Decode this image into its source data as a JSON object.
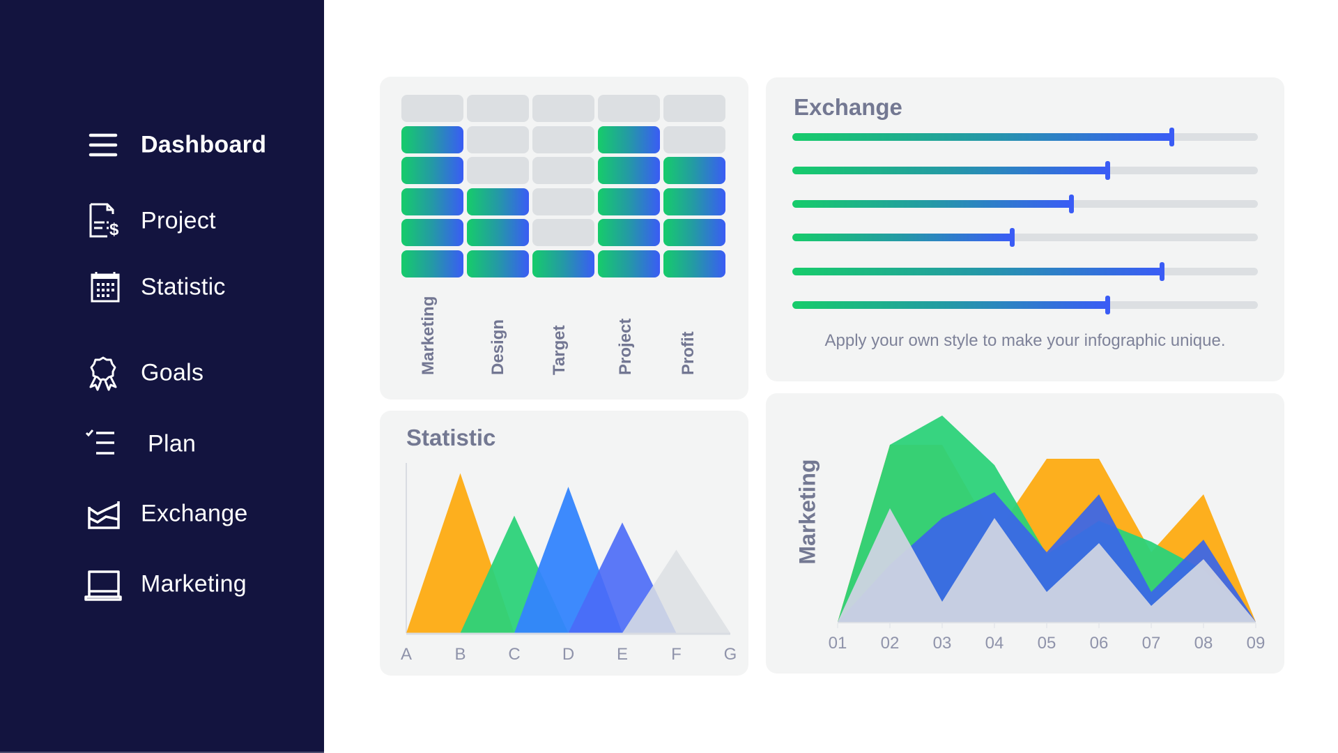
{
  "sidebar": {
    "background": "#13143f",
    "items": [
      {
        "label": "Dashboard",
        "icon": "menu-icon",
        "active": true
      },
      {
        "label": "Project",
        "icon": "invoice-icon",
        "active": false
      },
      {
        "label": "Statistic",
        "icon": "calendar-icon",
        "active": false
      },
      {
        "label": "Goals",
        "icon": "award-badge-icon",
        "active": false
      },
      {
        "label": "Plan",
        "icon": "checklist-icon",
        "active": false
      },
      {
        "label": "Exchange",
        "icon": "area-chart-icon",
        "active": false
      },
      {
        "label": "Marketing",
        "icon": "laptop-icon",
        "active": false
      }
    ]
  },
  "heatmap": {
    "columns": [
      "Marketing",
      "Design",
      "Target",
      "Project",
      "Profit"
    ],
    "rows": 6,
    "filled_from_bottom": [
      5,
      3,
      1,
      5,
      4
    ],
    "gradient": [
      "#16cc6a",
      "#3a5cf5"
    ],
    "empty_color": "#dcdfe2"
  },
  "exchange": {
    "title": "Exchange",
    "sliders": [
      81.4,
      67.7,
      59.9,
      47.2,
      79.3,
      67.7
    ],
    "caption": "Apply your own style to make your infographic unique."
  },
  "statistic": {
    "title": "Statistic"
  },
  "marketing": {
    "ylabel": "Marketing"
  },
  "chart_data": [
    {
      "type": "area",
      "title": "Statistic",
      "subtype": "triangle-peaks",
      "categories": [
        "A",
        "B",
        "C",
        "D",
        "E",
        "F",
        "G"
      ],
      "series": [
        {
          "name": "orange",
          "peak_at": "B",
          "span": [
            "A",
            "C"
          ],
          "value": 94,
          "color": "#fdaf1e"
        },
        {
          "name": "green",
          "peak_at": "C",
          "span": [
            "B",
            "D"
          ],
          "value": 69,
          "color": "#2cd279"
        },
        {
          "name": "blue",
          "peak_at": "D",
          "span": [
            "C",
            "E"
          ],
          "value": 86,
          "color": "#3384fd"
        },
        {
          "name": "indigo",
          "peak_at": "E",
          "span": [
            "D",
            "F"
          ],
          "value": 65,
          "color": "#4a6af7"
        },
        {
          "name": "gray",
          "peak_at": "F",
          "span": [
            "E",
            "G"
          ],
          "value": 49,
          "color": "#dcdfe3"
        }
      ],
      "xlabel": "",
      "ylabel": "",
      "ylim": [
        0,
        100
      ],
      "grid": false,
      "legend": "none"
    },
    {
      "type": "area",
      "title": "",
      "ylabel": "Marketing",
      "xlabel": "",
      "categories": [
        "01",
        "02",
        "03",
        "04",
        "05",
        "06",
        "07",
        "08",
        "09"
      ],
      "series": [
        {
          "name": "orange",
          "color": "#fdaf1e",
          "values": [
            0,
            254,
            254,
            123,
            234,
            234,
            100,
            183,
            0
          ]
        },
        {
          "name": "green",
          "color": "#2cd279",
          "values": [
            0,
            254,
            296,
            225,
            97,
            145,
            115,
            75,
            0
          ]
        },
        {
          "name": "blue",
          "color": "#3a66e8",
          "values": [
            0,
            82,
            149,
            186,
            100,
            183,
            43,
            118,
            0
          ]
        },
        {
          "name": "gray",
          "color": "#cdd3e2",
          "values": [
            0,
            163,
            29,
            149,
            43,
            113,
            23,
            90,
            0
          ]
        }
      ],
      "ylim": [
        0,
        320
      ],
      "grid": false,
      "legend": "none"
    }
  ]
}
